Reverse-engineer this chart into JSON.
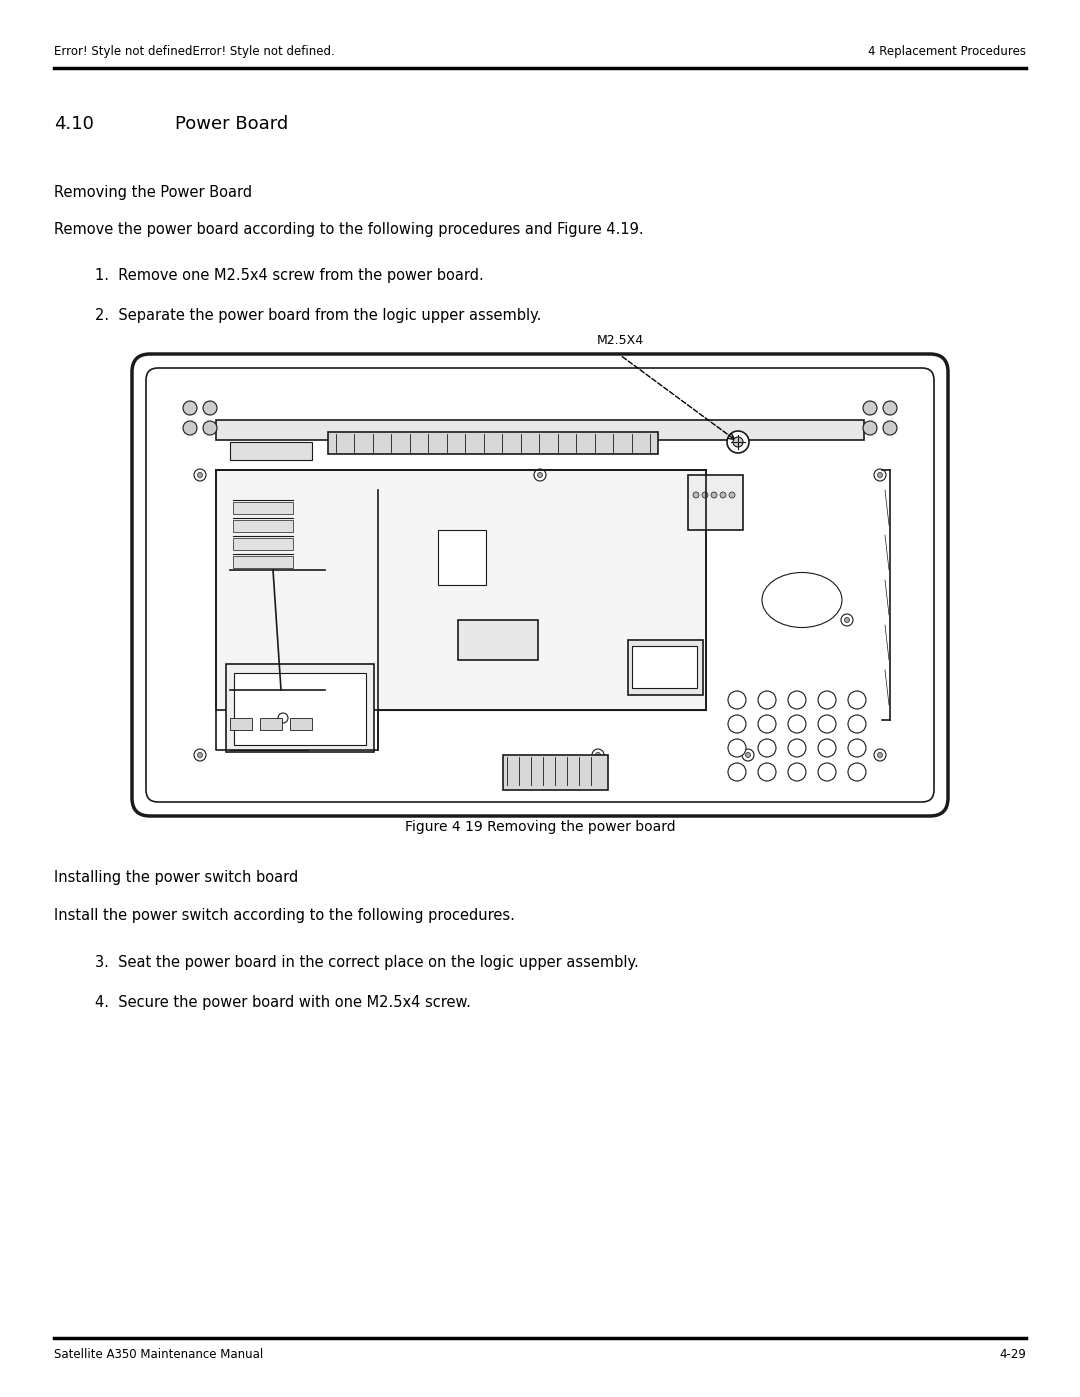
{
  "page_width": 10.8,
  "page_height": 13.97,
  "bg_color": "#ffffff",
  "header_left": "Error! Style not definedError! Style not defined.",
  "header_right": "4 Replacement Procedures",
  "footer_left": "Satellite A350 Maintenance Manual",
  "footer_right": "4-29",
  "section_title_num": "4.10",
  "section_title_text": "Power Board",
  "subsection1": "Removing the Power Board",
  "para1": "Remove the power board according to the following procedures and Figure 4.19.",
  "step1": "1.  Remove one M2.5x4 screw from the power board.",
  "step2": "2.  Separate the power board from the logic upper assembly.",
  "screw_label": "M2.5X4",
  "figure_caption": "Figure 4 19 Removing the power board",
  "subsection2": "Installing the power switch board",
  "para2": "Install the power switch according to the following procedures.",
  "step3": "3.  Seat the power board in the correct place on the logic upper assembly.",
  "step4": "4.  Secure the power board with one M2.5x4 screw.",
  "font_header": 8.5,
  "font_section": 13,
  "font_subsection": 10.5,
  "font_body": 10.5,
  "font_step": 10.5,
  "font_caption": 10,
  "text_color": "#000000"
}
